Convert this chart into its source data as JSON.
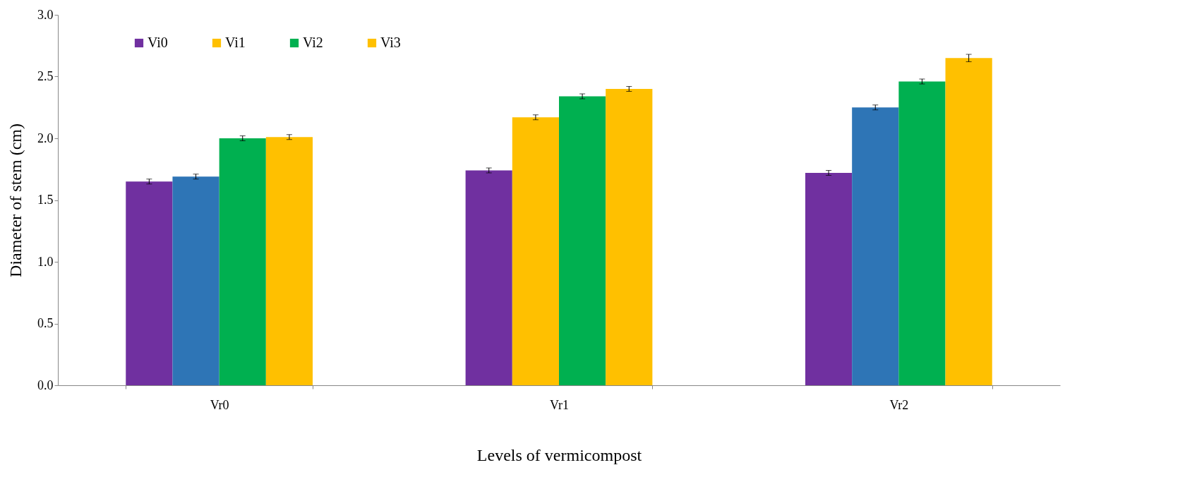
{
  "chart_data": {
    "type": "bar",
    "xlabel": "Levels of vermicompost",
    "ylabel": "Diameter of stem (cm)",
    "categories": [
      "Vr0",
      "Vr1",
      "Vr2"
    ],
    "series": [
      {
        "name": "Vi0",
        "color": "#7030a0",
        "values": [
          1.65,
          1.74,
          1.72
        ],
        "errors": [
          0.02,
          0.02,
          0.02
        ]
      },
      {
        "name": "Vi1",
        "color": "#ffc000",
        "colors": [
          "#2e75b6",
          "#ffc000",
          "#2e75b6"
        ],
        "values": [
          1.69,
          2.17,
          2.25
        ],
        "errors": [
          0.02,
          0.02,
          0.02
        ]
      },
      {
        "name": "Vi2",
        "color": "#00b050",
        "values": [
          2.0,
          2.34,
          2.46
        ],
        "errors": [
          0.02,
          0.02,
          0.02
        ]
      },
      {
        "name": "Vi3",
        "color": "#ffc000",
        "values": [
          2.01,
          2.4,
          2.65
        ],
        "errors": [
          0.02,
          0.02,
          0.03
        ]
      }
    ],
    "ylim": [
      0,
      3
    ],
    "yticks": [
      {
        "value": 0,
        "label": "0.0"
      },
      {
        "value": 0.5,
        "label": "0.5"
      },
      {
        "value": 1,
        "label": "1.0"
      },
      {
        "value": 1.5,
        "label": "1.5"
      },
      {
        "value": 2,
        "label": "2.0"
      },
      {
        "value": 2.5,
        "label": "2.5"
      },
      {
        "value": 3,
        "label": "3.0"
      }
    ],
    "grid": false,
    "legend": "top left"
  }
}
